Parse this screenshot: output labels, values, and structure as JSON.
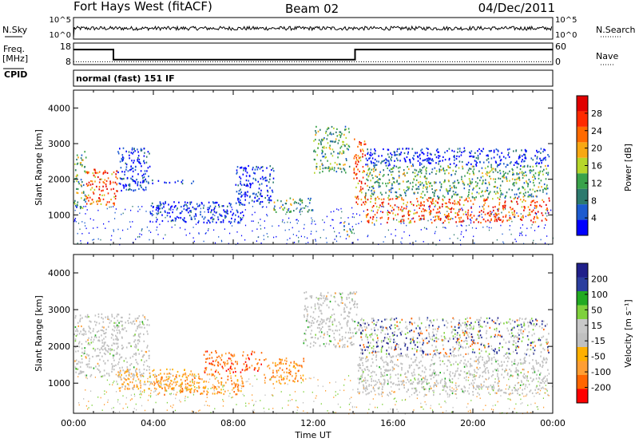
{
  "header": {
    "station": "Fort Hays West (fitACF)",
    "beam": "Beam 02",
    "date": "04/Dec/2011"
  },
  "noise_panel": {
    "left_label": "N.Sky",
    "right_label": "N.Search",
    "left_ticks": [
      "10^5",
      "10^0"
    ],
    "right_ticks": [
      "10^5",
      "10^0"
    ]
  },
  "freq_panel": {
    "left_label_1": "Freq.",
    "left_label_2": "[MHz]",
    "right_label": "Nave",
    "left_ticks": [
      "18",
      "8"
    ],
    "right_ticks": [
      "60",
      "0"
    ],
    "freq_levels": [
      {
        "t_start": 0.0,
        "t_end": 2.0,
        "mhz": 15.0
      },
      {
        "t_start": 2.0,
        "t_end": 14.1,
        "mhz": 10.3
      },
      {
        "t_start": 14.1,
        "t_end": 24.0,
        "mhz": 15.0
      }
    ],
    "nave_level": 8
  },
  "cpid": {
    "label": "CPID",
    "mode": "normal (fast) 151 IF"
  },
  "colors": {
    "power": [
      "#0000ff",
      "#1c5bd0",
      "#2c7a6e",
      "#39a24a",
      "#b6d62a",
      "#f8a812",
      "#ff6a00",
      "#ff2a00",
      "#e00000"
    ],
    "velocity": [
      "#ff0000",
      "#ff6600",
      "#ff9e33",
      "#ffb000",
      "#c0c0c0",
      "#c8c8c8",
      "#7fd13c",
      "#22aa22",
      "#2b3e9e",
      "#20208a"
    ]
  },
  "chart_data": [
    {
      "type": "heatmap",
      "name": "power",
      "xlabel": "",
      "ylabel": "Slant Range [km]",
      "xlim": [
        0,
        24
      ],
      "ylim": [
        180,
        4500
      ],
      "yticks": [
        "1000",
        "2000",
        "3000",
        "4000"
      ],
      "colorbar": {
        "label": "Power [dB]",
        "range": [
          0,
          32
        ],
        "ticks": [
          "4",
          "8",
          "12",
          "16",
          "20",
          "24",
          "28"
        ]
      },
      "bands": [
        {
          "t_start": 0.0,
          "t_end": 0.6,
          "range_km": [
            1200,
            2800
          ],
          "level": "mid"
        },
        {
          "t_start": 0.6,
          "t_end": 2.2,
          "range_km": [
            1300,
            2300
          ],
          "level": "high"
        },
        {
          "t_start": 2.2,
          "t_end": 3.8,
          "range_km": [
            1700,
            2900
          ],
          "level": "low"
        },
        {
          "t_start": 3.2,
          "t_end": 6.0,
          "range_km": [
            1900,
            2000
          ],
          "level": "low"
        },
        {
          "t_start": 3.8,
          "t_end": 8.5,
          "range_km": [
            800,
            1400
          ],
          "level": "low"
        },
        {
          "t_start": 8.0,
          "t_end": 10.0,
          "range_km": [
            1300,
            2400
          ],
          "level": "low"
        },
        {
          "t_start": 10.0,
          "t_end": 12.0,
          "range_km": [
            1100,
            1500
          ],
          "level": "mid"
        },
        {
          "t_start": 12.0,
          "t_end": 13.8,
          "range_km": [
            2200,
            3500
          ],
          "level": "mid"
        },
        {
          "t_start": 13.5,
          "t_end": 14.0,
          "range_km": [
            400,
            800
          ],
          "level": "mid"
        },
        {
          "t_start": 14.0,
          "t_end": 14.6,
          "range_km": [
            1300,
            3200
          ],
          "level": "high"
        },
        {
          "t_start": 14.6,
          "t_end": 23.8,
          "range_km": [
            800,
            1500
          ],
          "level": "high"
        },
        {
          "t_start": 14.6,
          "t_end": 23.8,
          "range_km": [
            1500,
            2400
          ],
          "level": "mid"
        },
        {
          "t_start": 14.6,
          "t_end": 23.8,
          "range_km": [
            2400,
            2900
          ],
          "level": "low"
        }
      ]
    },
    {
      "type": "heatmap",
      "name": "velocity",
      "xlabel": "Time UT",
      "ylabel": "Slant Range [km]",
      "xlim": [
        0,
        24
      ],
      "ylim": [
        180,
        4500
      ],
      "xticks": [
        "00:00",
        "04:00",
        "08:00",
        "12:00",
        "16:00",
        "20:00",
        "00:00"
      ],
      "yticks": [
        "1000",
        "2000",
        "3000",
        "4000"
      ],
      "colorbar": {
        "label": "Velocity [m s⁻¹]",
        "ticks": [
          "200",
          "100",
          "50",
          "15",
          "-15",
          "-50",
          "-100",
          "-200"
        ]
      },
      "bands": [
        {
          "t_start": 0.0,
          "t_end": 3.8,
          "range_km": [
            1200,
            2900
          ],
          "level": "ground"
        },
        {
          "t_start": 2.2,
          "t_end": 6.0,
          "range_km": [
            800,
            1400
          ],
          "level": "neg_small"
        },
        {
          "t_start": 4.0,
          "t_end": 8.5,
          "range_km": [
            700,
            1300
          ],
          "level": "neg_mid"
        },
        {
          "t_start": 6.5,
          "t_end": 9.5,
          "range_km": [
            1300,
            1900
          ],
          "level": "neg_large"
        },
        {
          "t_start": 9.5,
          "t_end": 11.5,
          "range_km": [
            1000,
            1700
          ],
          "level": "neg_mid"
        },
        {
          "t_start": 11.5,
          "t_end": 14.2,
          "range_km": [
            2000,
            3500
          ],
          "level": "ground"
        },
        {
          "t_start": 14.2,
          "t_end": 23.8,
          "range_km": [
            700,
            1800
          ],
          "level": "ground"
        },
        {
          "t_start": 14.2,
          "t_end": 23.8,
          "range_km": [
            1800,
            2800
          ],
          "level": "mixed"
        }
      ]
    }
  ]
}
